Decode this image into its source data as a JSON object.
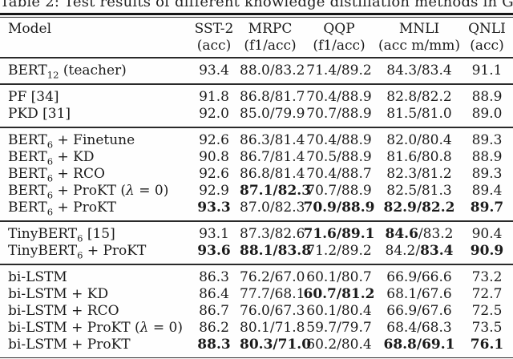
{
  "title": "Table 2: Test results of different knowledge distillation methods in GLUE.",
  "table": {
    "header": [
      {
        "label": "Model",
        "sub_label": ""
      },
      {
        "label": "SST-2",
        "sub_label": "(acc)"
      },
      {
        "label": "MRPC",
        "sub_label": "(f1/acc)"
      },
      {
        "label": "QQP",
        "sub_label": "(f1/acc)"
      },
      {
        "label": "MNLI",
        "sub_label": "(acc m/mm)"
      },
      {
        "label": "QNLI",
        "sub_label": "(acc)"
      }
    ],
    "groups": [
      {
        "rows": [
          {
            "model": [
              {
                "t": "BERT"
              },
              {
                "t": "12",
                "sub": true
              },
              {
                "t": " (teacher)"
              }
            ],
            "cells": [
              [
                {
                  "t": "93.4"
                }
              ],
              [
                {
                  "t": "88.0/83.2"
                }
              ],
              [
                {
                  "t": "71.4/89.2"
                }
              ],
              [
                {
                  "t": "84.3/83.4"
                }
              ],
              [
                {
                  "t": "91.1"
                }
              ]
            ]
          }
        ]
      },
      {
        "rows": [
          {
            "model": [
              {
                "t": "PF [34]"
              }
            ],
            "cells": [
              [
                {
                  "t": "91.8"
                }
              ],
              [
                {
                  "t": "86.8/81.7"
                }
              ],
              [
                {
                  "t": "70.4/88.9"
                }
              ],
              [
                {
                  "t": "82.8/82.2"
                }
              ],
              [
                {
                  "t": "88.9"
                }
              ]
            ]
          },
          {
            "model": [
              {
                "t": "PKD [31]"
              }
            ],
            "cells": [
              [
                {
                  "t": "92.0"
                }
              ],
              [
                {
                  "t": "85.0/79.9"
                }
              ],
              [
                {
                  "t": "70.7/88.9"
                }
              ],
              [
                {
                  "t": "81.5/81.0"
                }
              ],
              [
                {
                  "t": "89.0"
                }
              ]
            ]
          }
        ]
      },
      {
        "rows": [
          {
            "model": [
              {
                "t": "BERT"
              },
              {
                "t": "6",
                "sub": true
              },
              {
                "t": " + Finetune"
              }
            ],
            "cells": [
              [
                {
                  "t": "92.6"
                }
              ],
              [
                {
                  "t": "86.3/81.4"
                }
              ],
              [
                {
                  "t": "70.4/88.9"
                }
              ],
              [
                {
                  "t": "82.0/80.4"
                }
              ],
              [
                {
                  "t": "89.3"
                }
              ]
            ]
          },
          {
            "model": [
              {
                "t": "BERT"
              },
              {
                "t": "6",
                "sub": true
              },
              {
                "t": " + KD"
              }
            ],
            "cells": [
              [
                {
                  "t": "90.8"
                }
              ],
              [
                {
                  "t": "86.7/81.4"
                }
              ],
              [
                {
                  "t": "70.5/88.9"
                }
              ],
              [
                {
                  "t": "81.6/80.8"
                }
              ],
              [
                {
                  "t": "88.9"
                }
              ]
            ]
          },
          {
            "model": [
              {
                "t": "BERT"
              },
              {
                "t": "6",
                "sub": true
              },
              {
                "t": " + RCO"
              }
            ],
            "cells": [
              [
                {
                  "t": "92.6"
                }
              ],
              [
                {
                  "t": "86.8/81.4"
                }
              ],
              [
                {
                  "t": "70.4/88.7"
                }
              ],
              [
                {
                  "t": "82.3/81.2"
                }
              ],
              [
                {
                  "t": "89.3"
                }
              ]
            ]
          },
          {
            "model": [
              {
                "t": "BERT"
              },
              {
                "t": "6",
                "sub": true
              },
              {
                "t": " + ProKT ("
              },
              {
                "t": "λ",
                "i": true
              },
              {
                "t": " = 0)"
              }
            ],
            "cells": [
              [
                {
                  "t": "92.9"
                }
              ],
              [
                {
                  "t": "87.1/82.3",
                  "b": true
                }
              ],
              [
                {
                  "t": "70.7/88.9"
                }
              ],
              [
                {
                  "t": "82.5/81.3"
                }
              ],
              [
                {
                  "t": "89.4"
                }
              ]
            ]
          },
          {
            "model": [
              {
                "t": "BERT"
              },
              {
                "t": "6",
                "sub": true
              },
              {
                "t": " + ProKT"
              }
            ],
            "cells": [
              [
                {
                  "t": "93.3",
                  "b": true
                }
              ],
              [
                {
                  "t": "87.0/82.3"
                }
              ],
              [
                {
                  "t": "70.9/88.9",
                  "b": true
                }
              ],
              [
                {
                  "t": "82.9/82.2",
                  "b": true
                }
              ],
              [
                {
                  "t": "89.7",
                  "b": true
                }
              ]
            ]
          }
        ]
      },
      {
        "rows": [
          {
            "model": [
              {
                "t": "TinyBERT"
              },
              {
                "t": "6",
                "sub": true
              },
              {
                "t": " [15]"
              }
            ],
            "cells": [
              [
                {
                  "t": "93.1"
                }
              ],
              [
                {
                  "t": "87.3/82.6"
                }
              ],
              [
                {
                  "t": "71.6/89.1",
                  "b": true
                }
              ],
              [
                {
                  "t": "84.6",
                  "b": true
                },
                {
                  "t": "/83.2"
                }
              ],
              [
                {
                  "t": "90.4"
                }
              ]
            ]
          },
          {
            "model": [
              {
                "t": "TinyBERT"
              },
              {
                "t": "6",
                "sub": true
              },
              {
                "t": " + ProKT"
              }
            ],
            "cells": [
              [
                {
                  "t": "93.6",
                  "b": true
                }
              ],
              [
                {
                  "t": "88.1/83.8",
                  "b": true
                }
              ],
              [
                {
                  "t": "71.2/89.2"
                }
              ],
              [
                {
                  "t": "84.2/"
                },
                {
                  "t": "83.4",
                  "b": true
                }
              ],
              [
                {
                  "t": "90.9",
                  "b": true
                }
              ]
            ]
          }
        ]
      },
      {
        "rows": [
          {
            "model": [
              {
                "t": "bi-LSTM"
              }
            ],
            "cells": [
              [
                {
                  "t": "86.3"
                }
              ],
              [
                {
                  "t": "76.2/67.0"
                }
              ],
              [
                {
                  "t": "60.1/80.7"
                }
              ],
              [
                {
                  "t": "66.9/66.6"
                }
              ],
              [
                {
                  "t": "73.2"
                }
              ]
            ]
          },
          {
            "model": [
              {
                "t": "bi-LSTM + KD"
              }
            ],
            "cells": [
              [
                {
                  "t": "86.4"
                }
              ],
              [
                {
                  "t": "77.7/68.1"
                }
              ],
              [
                {
                  "t": "60.7/81.2",
                  "b": true
                }
              ],
              [
                {
                  "t": "68.1/67.6"
                }
              ],
              [
                {
                  "t": "72.7"
                }
              ]
            ]
          },
          {
            "model": [
              {
                "t": "bi-LSTM + RCO"
              }
            ],
            "cells": [
              [
                {
                  "t": "86.7"
                }
              ],
              [
                {
                  "t": "76.0/67.3"
                }
              ],
              [
                {
                  "t": "60.1/80.4"
                }
              ],
              [
                {
                  "t": "66.9/67.6"
                }
              ],
              [
                {
                  "t": "72.5"
                }
              ]
            ]
          },
          {
            "model": [
              {
                "t": "bi-LSTM + ProKT ("
              },
              {
                "t": "λ",
                "i": true
              },
              {
                "t": " = 0)"
              }
            ],
            "cells": [
              [
                {
                  "t": "86.2"
                }
              ],
              [
                {
                  "t": "80.1/71.8"
                }
              ],
              [
                {
                  "t": "59.7/79.7"
                }
              ],
              [
                {
                  "t": "68.4/68.3"
                }
              ],
              [
                {
                  "t": "73.5"
                }
              ]
            ]
          },
          {
            "model": [
              {
                "t": "bi-LSTM + ProKT"
              }
            ],
            "cells": [
              [
                {
                  "t": "88.3",
                  "b": true
                }
              ],
              [
                {
                  "t": "80.3/71.0",
                  "b": true
                }
              ],
              [
                {
                  "t": "60.2/80.4"
                }
              ],
              [
                {
                  "t": "68.8/69.1",
                  "b": true
                }
              ],
              [
                {
                  "t": "76.1",
                  "b": true
                }
              ]
            ]
          }
        ]
      }
    ]
  }
}
